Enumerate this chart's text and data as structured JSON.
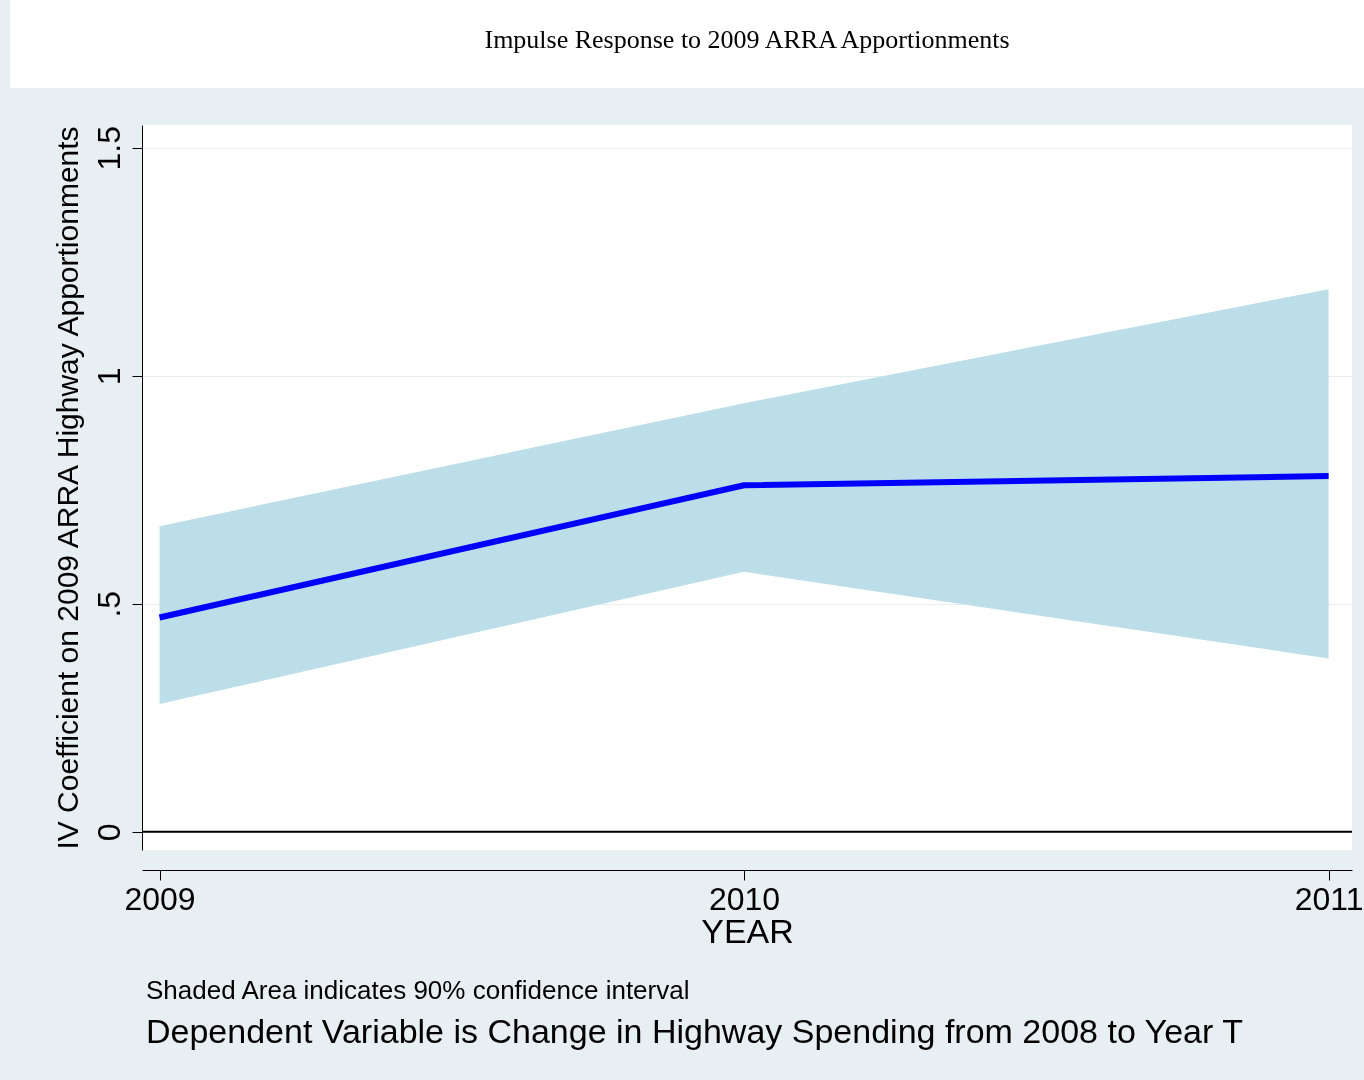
{
  "chart_data": {
    "type": "line",
    "title": "Impulse Response to 2009 ARRA Apportionments",
    "xlabel": "YEAR",
    "ylabel": "IV Coefficient on 2009 ARRA Highway Apportionments",
    "x": [
      2009,
      2010,
      2011
    ],
    "series": [
      {
        "color": "#0000ff",
        "values": [
          0.47,
          0.76,
          0.78
        ],
        "lower": [
          0.28,
          0.57,
          0.38
        ],
        "upper": [
          0.67,
          0.94,
          1.19
        ]
      }
    ],
    "xlim": [
      2008.97,
      2011.04
    ],
    "xticks": [
      2009,
      2010,
      2011
    ],
    "ylim": [
      -0.04,
      1.55
    ],
    "yticks": [
      0,
      {
        "value": 0.5,
        "label": ".5"
      },
      1,
      1.5
    ],
    "ref_lines": [
      {
        "axis": "y",
        "value": 0,
        "color": "#000000"
      }
    ],
    "grid": "y",
    "marker": "none",
    "line_style": "solid",
    "annotations": [
      "Shaded Area indicates 90% confidence interval",
      "Dependent Variable is Change in Highway Spending from 2008 to Year T"
    ]
  }
}
